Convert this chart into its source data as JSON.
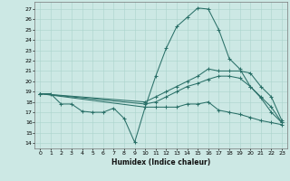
{
  "xlabel": "Humidex (Indice chaleur)",
  "xlim": [
    -0.5,
    23.5
  ],
  "ylim": [
    13.5,
    27.7
  ],
  "yticks": [
    14,
    15,
    16,
    17,
    18,
    19,
    20,
    21,
    22,
    23,
    24,
    25,
    26,
    27
  ],
  "xticks": [
    0,
    1,
    2,
    3,
    4,
    5,
    6,
    7,
    8,
    9,
    10,
    11,
    12,
    13,
    14,
    15,
    16,
    17,
    18,
    19,
    20,
    21,
    22,
    23
  ],
  "bg_color": "#cce8e4",
  "grid_color": "#aad4cc",
  "line_color": "#2a7068",
  "lines": [
    {
      "x": [
        0,
        1,
        2,
        3,
        4,
        5,
        6,
        7,
        8,
        9,
        10,
        11,
        12,
        13,
        14,
        15,
        16,
        17,
        18,
        19,
        20,
        21,
        22,
        23
      ],
      "y": [
        18.8,
        18.8,
        17.8,
        17.8,
        17.1,
        17.0,
        17.0,
        17.4,
        16.4,
        14.1,
        17.5,
        20.5,
        23.2,
        25.3,
        26.2,
        27.1,
        27.0,
        25.0,
        22.2,
        21.2,
        19.5,
        18.4,
        17.0,
        16.0
      ]
    },
    {
      "x": [
        0,
        10,
        11,
        12,
        13,
        14,
        15,
        16,
        17,
        18,
        19,
        20,
        21,
        22,
        23
      ],
      "y": [
        18.8,
        18.0,
        18.5,
        19.0,
        19.5,
        20.0,
        20.5,
        21.2,
        21.0,
        21.0,
        21.0,
        20.8,
        19.5,
        18.5,
        16.2
      ]
    },
    {
      "x": [
        0,
        10,
        11,
        12,
        13,
        14,
        15,
        16,
        17,
        18,
        19,
        20,
        21,
        22,
        23
      ],
      "y": [
        18.8,
        17.8,
        18.0,
        18.5,
        19.0,
        19.5,
        19.8,
        20.2,
        20.5,
        20.5,
        20.3,
        19.5,
        18.5,
        17.5,
        16.0
      ]
    },
    {
      "x": [
        0,
        10,
        11,
        12,
        13,
        14,
        15,
        16,
        17,
        18,
        19,
        20,
        21,
        22,
        23
      ],
      "y": [
        18.8,
        17.5,
        17.5,
        17.5,
        17.5,
        17.8,
        17.8,
        18.0,
        17.2,
        17.0,
        16.8,
        16.5,
        16.2,
        16.0,
        15.8
      ]
    }
  ]
}
